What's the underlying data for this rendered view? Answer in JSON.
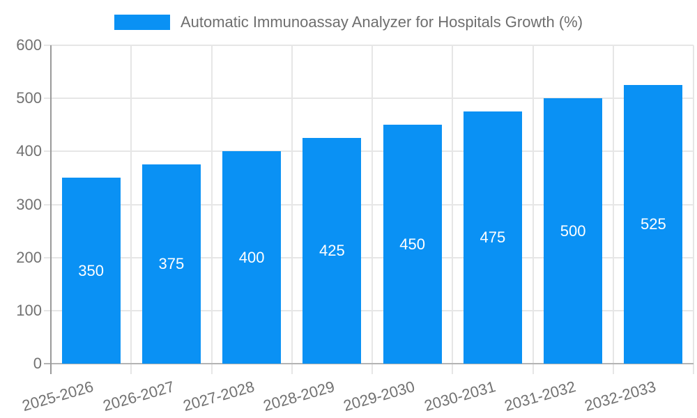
{
  "legend": {
    "label": "Automatic Immunoassay Analyzer for Hospitals Growth (%)"
  },
  "chart_data": {
    "type": "bar",
    "title": "Automatic Immunoassay Analyzer for Hospitals Growth (%)",
    "categories": [
      "2025-2026",
      "2026-2027",
      "2027-2028",
      "2028-2029",
      "2029-2030",
      "2030-2031",
      "2031-2032",
      "2032-2033"
    ],
    "series": [
      {
        "name": "Automatic Immunoassay Analyzer for Hospitals Growth (%)",
        "values": [
          350,
          375,
          400,
          425,
          450,
          475,
          500,
          525
        ],
        "color": "#0a91f4"
      }
    ],
    "value_labels": [
      "350",
      "375",
      "400",
      "425",
      "450",
      "475",
      "500",
      "525"
    ],
    "xlabel": "",
    "ylabel": "",
    "ylim": [
      0,
      600
    ],
    "yticks": [
      0,
      100,
      200,
      300,
      400,
      500,
      600
    ],
    "grid": true,
    "legend_position": "top",
    "x_tick_rotation_deg": -16
  },
  "colors": {
    "bar": "#0a91f4",
    "bar_label": "#ffffff",
    "gridline": "#e6e6e6",
    "axis_line": "#9a9a9a",
    "baseline": "#b3b3b3",
    "axis_text": "#717171",
    "legend_text": "#6e6e6e",
    "background": "#ffffff"
  }
}
